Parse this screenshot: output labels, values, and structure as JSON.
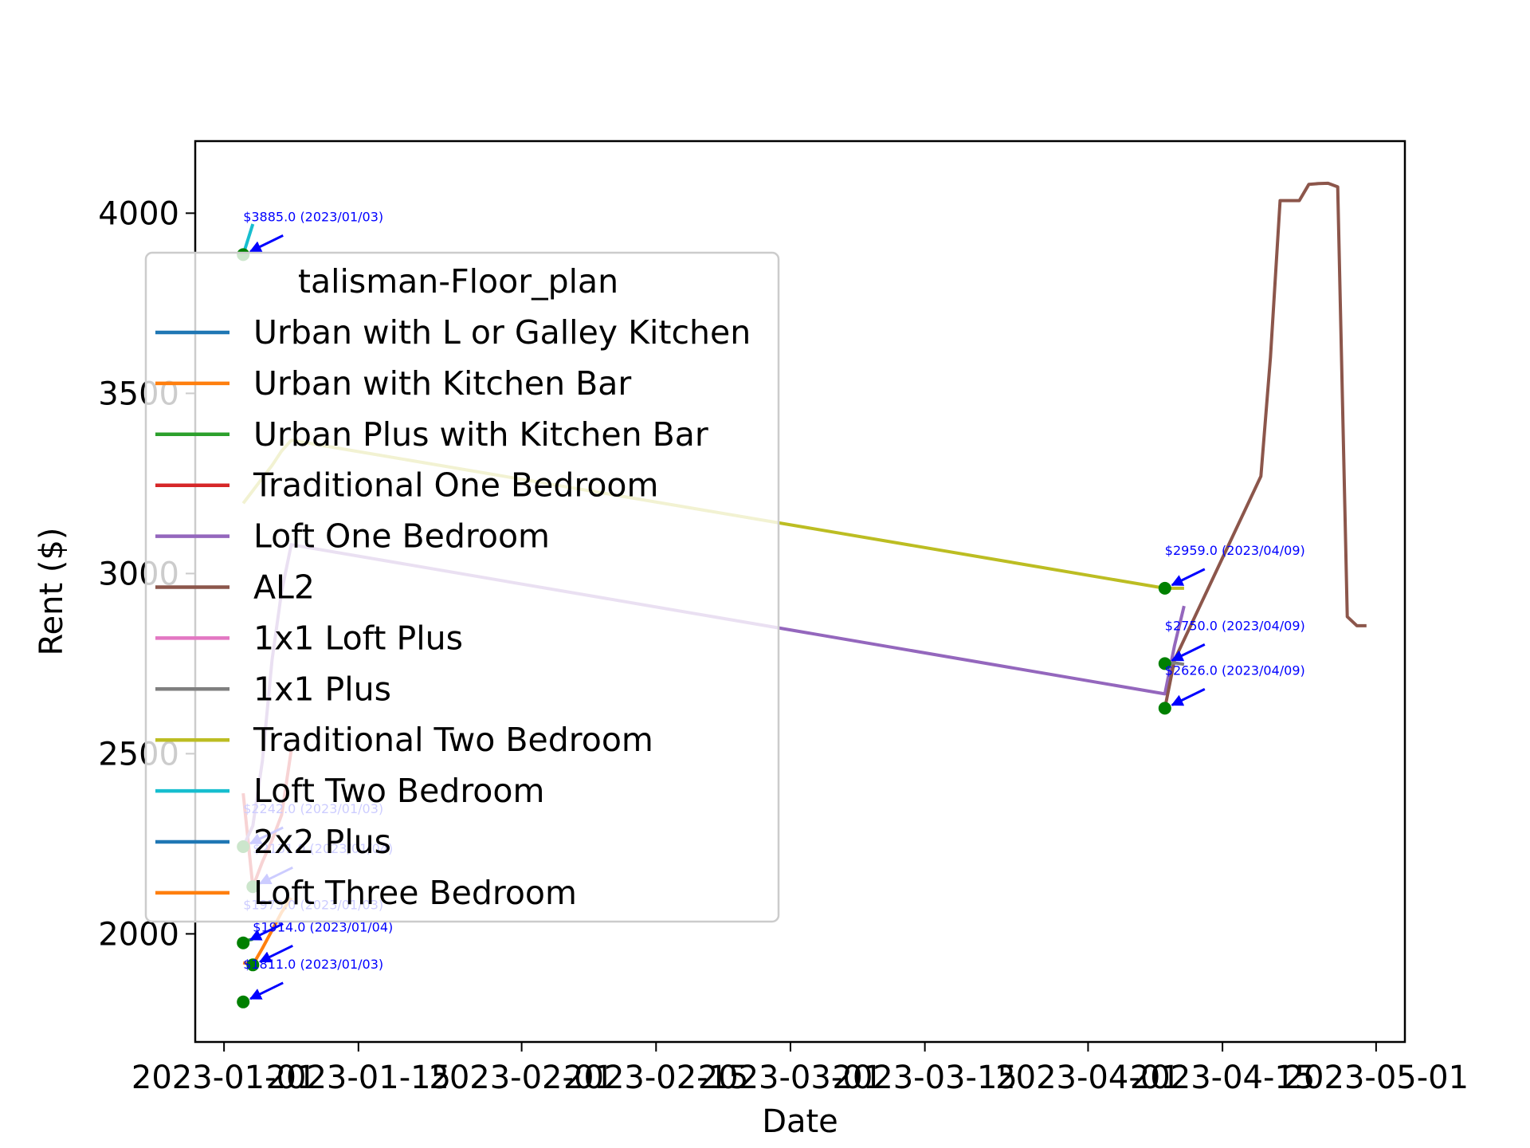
{
  "chart_data": {
    "type": "line",
    "title": "",
    "xlabel": "Date",
    "ylabel": "Rent ($)",
    "xlim": [
      "2022-12-29",
      "2023-05-04"
    ],
    "ylim": [
      1700,
      4200
    ],
    "x_ticks": [
      "2023-01-01",
      "2023-01-15",
      "2023-02-01",
      "2023-02-15",
      "2023-03-01",
      "2023-03-15",
      "2023-04-01",
      "2023-04-15",
      "2023-05-01"
    ],
    "y_ticks": [
      2000,
      2500,
      3000,
      3500,
      4000
    ],
    "grid": false,
    "legend": {
      "title": "talisman-Floor_plan",
      "placement": "upper-left"
    },
    "series": [
      {
        "name": "Urban with L or Galley Kitchen",
        "color": "#1f77b4",
        "points": []
      },
      {
        "name": "Urban with Kitchen Bar",
        "color": "#ff7f0e",
        "points": [
          [
            "2023-01-03",
            1920
          ],
          [
            "2023-01-04",
            1914
          ],
          [
            "2023-01-05",
            1960
          ],
          [
            "2023-01-06",
            2010
          ],
          [
            "2023-01-07",
            2060
          ],
          [
            "2023-01-08",
            2100
          ]
        ]
      },
      {
        "name": "Urban Plus with Kitchen Bar",
        "color": "#2ca02c",
        "points": [
          [
            "2023-01-03",
            1980
          ],
          [
            "2023-01-04",
            1985
          ]
        ]
      },
      {
        "name": "Traditional One Bedroom",
        "color": "#d62728",
        "points": [
          [
            "2023-01-03",
            2390
          ],
          [
            "2023-01-04",
            2130
          ],
          [
            "2023-01-05",
            2200
          ],
          [
            "2023-01-06",
            2260
          ],
          [
            "2023-01-07",
            2330
          ],
          [
            "2023-01-08",
            2510
          ]
        ]
      },
      {
        "name": "Loft One Bedroom",
        "color": "#9467bd",
        "points": [
          [
            "2023-01-03",
            2242
          ],
          [
            "2023-01-04",
            2300
          ],
          [
            "2023-01-05",
            2480
          ],
          [
            "2023-01-06",
            2760
          ],
          [
            "2023-01-07",
            2950
          ],
          [
            "2023-01-08",
            3080
          ],
          [
            "2023-04-09",
            2666
          ],
          [
            "2023-04-10",
            2800
          ],
          [
            "2023-04-11",
            2910
          ]
        ]
      },
      {
        "name": "AL2",
        "color": "#8c564b",
        "points": [
          [
            "2023-04-09",
            2626
          ],
          [
            "2023-04-10",
            2760
          ],
          [
            "2023-04-19",
            3270
          ],
          [
            "2023-04-20",
            3600
          ],
          [
            "2023-04-21",
            4035
          ],
          [
            "2023-04-22",
            4035
          ],
          [
            "2023-04-23",
            4035
          ],
          [
            "2023-04-24",
            4080
          ],
          [
            "2023-04-25",
            4082
          ],
          [
            "2023-04-26",
            4083
          ],
          [
            "2023-04-27",
            4073
          ],
          [
            "2023-04-28",
            2880
          ],
          [
            "2023-04-29",
            2855
          ],
          [
            "2023-04-30",
            2855
          ]
        ]
      },
      {
        "name": "1x1 Loft Plus",
        "color": "#e377c2",
        "points": []
      },
      {
        "name": "1x1 Plus",
        "color": "#7f7f7f",
        "points": [
          [
            "2023-04-09",
            2750
          ],
          [
            "2023-04-10",
            2752
          ],
          [
            "2023-04-11",
            2748
          ]
        ]
      },
      {
        "name": "Traditional Two Bedroom",
        "color": "#bcbd22",
        "points": [
          [
            "2023-01-03",
            3195
          ],
          [
            "2023-01-04",
            3230
          ],
          [
            "2023-01-05",
            3265
          ],
          [
            "2023-01-06",
            3300
          ],
          [
            "2023-01-07",
            3340
          ],
          [
            "2023-01-08",
            3370
          ],
          [
            "2023-04-09",
            2959
          ],
          [
            "2023-04-10",
            2959
          ],
          [
            "2023-04-11",
            2959
          ]
        ]
      },
      {
        "name": "Loft Two Bedroom",
        "color": "#17becf",
        "points": [
          [
            "2023-01-03",
            3885
          ],
          [
            "2023-01-04",
            3970
          ]
        ]
      },
      {
        "name": "2x2 Plus",
        "color": "#1f77b4",
        "points": []
      },
      {
        "name": "Loft Three Bedroom",
        "color": "#ff7f0e",
        "points": []
      }
    ],
    "annotations": [
      {
        "text": "$3885.0 (2023/01/03)",
        "x": "2023-01-03",
        "y": 3885
      },
      {
        "text": "$2242.0 (2023/01/03)",
        "x": "2023-01-03",
        "y": 2242
      },
      {
        "text": "$2131.0 (2023/01/04)",
        "x": "2023-01-04",
        "y": 2131
      },
      {
        "text": "$1975.0 (2023/01/03)",
        "x": "2023-01-03",
        "y": 1975
      },
      {
        "text": "$1914.0 (2023/01/04)",
        "x": "2023-01-04",
        "y": 1914
      },
      {
        "text": "$1811.0 (2023/01/03)",
        "x": "2023-01-03",
        "y": 1811
      },
      {
        "text": "$2959.0 (2023/04/09)",
        "x": "2023-04-09",
        "y": 2959
      },
      {
        "text": "$2750.0 (2023/04/09)",
        "x": "2023-04-09",
        "y": 2750
      },
      {
        "text": "$2626.0 (2023/04/09)",
        "x": "2023-04-09",
        "y": 2626
      }
    ],
    "marker_color": "#008000",
    "annotation_color": "#0000ff"
  }
}
